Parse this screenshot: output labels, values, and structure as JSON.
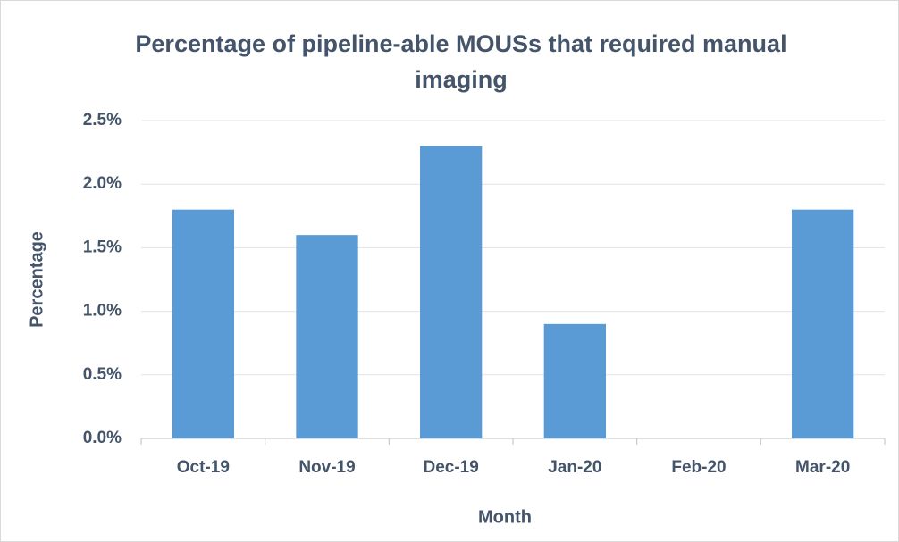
{
  "chart_data": {
    "type": "bar",
    "title": "Percentage of pipeline-able MOUSs that required manual imaging",
    "x_label": "Month",
    "y_label": "Percentage",
    "categories": [
      "Oct-19",
      "Nov-19",
      "Dec-19",
      "Jan-20",
      "Feb-20",
      "Mar-20"
    ],
    "values": [
      1.8,
      1.6,
      2.3,
      0.9,
      0,
      1.8
    ],
    "color": "#5b9bd5",
    "ylim": [
      0,
      2.5
    ],
    "yticks": [
      {
        "value": 0,
        "label": "0.0%"
      },
      {
        "value": 0.5,
        "label": "0.5%"
      },
      {
        "value": 1,
        "label": "1.0%"
      },
      {
        "value": 1.5,
        "label": "1.5%"
      },
      {
        "value": 2,
        "label": "2.0%"
      },
      {
        "value": 2.5,
        "label": "2.5%"
      }
    ],
    "grid": true
  }
}
